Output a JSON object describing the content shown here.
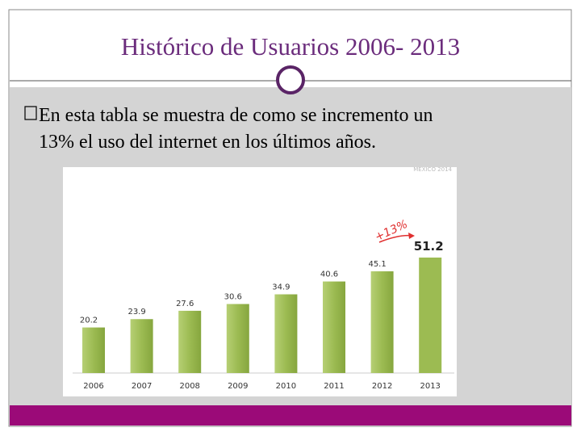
{
  "slide": {
    "title": "Histórico de Usuarios 2006- 2013",
    "bullet": [
      "En esta tabla se muestra de como se incremento un",
      "13% el uso del internet en los últimos años."
    ]
  },
  "chart_data": {
    "type": "bar",
    "note": "MEXICO 2014",
    "annotation": "+13%",
    "categories": [
      "2006",
      "2007",
      "2008",
      "2009",
      "2010",
      "2011",
      "2012",
      "2013"
    ],
    "values": [
      20.2,
      23.9,
      27.6,
      30.6,
      34.9,
      40.6,
      45.1,
      51.2
    ],
    "color": "#9cbb52"
  }
}
